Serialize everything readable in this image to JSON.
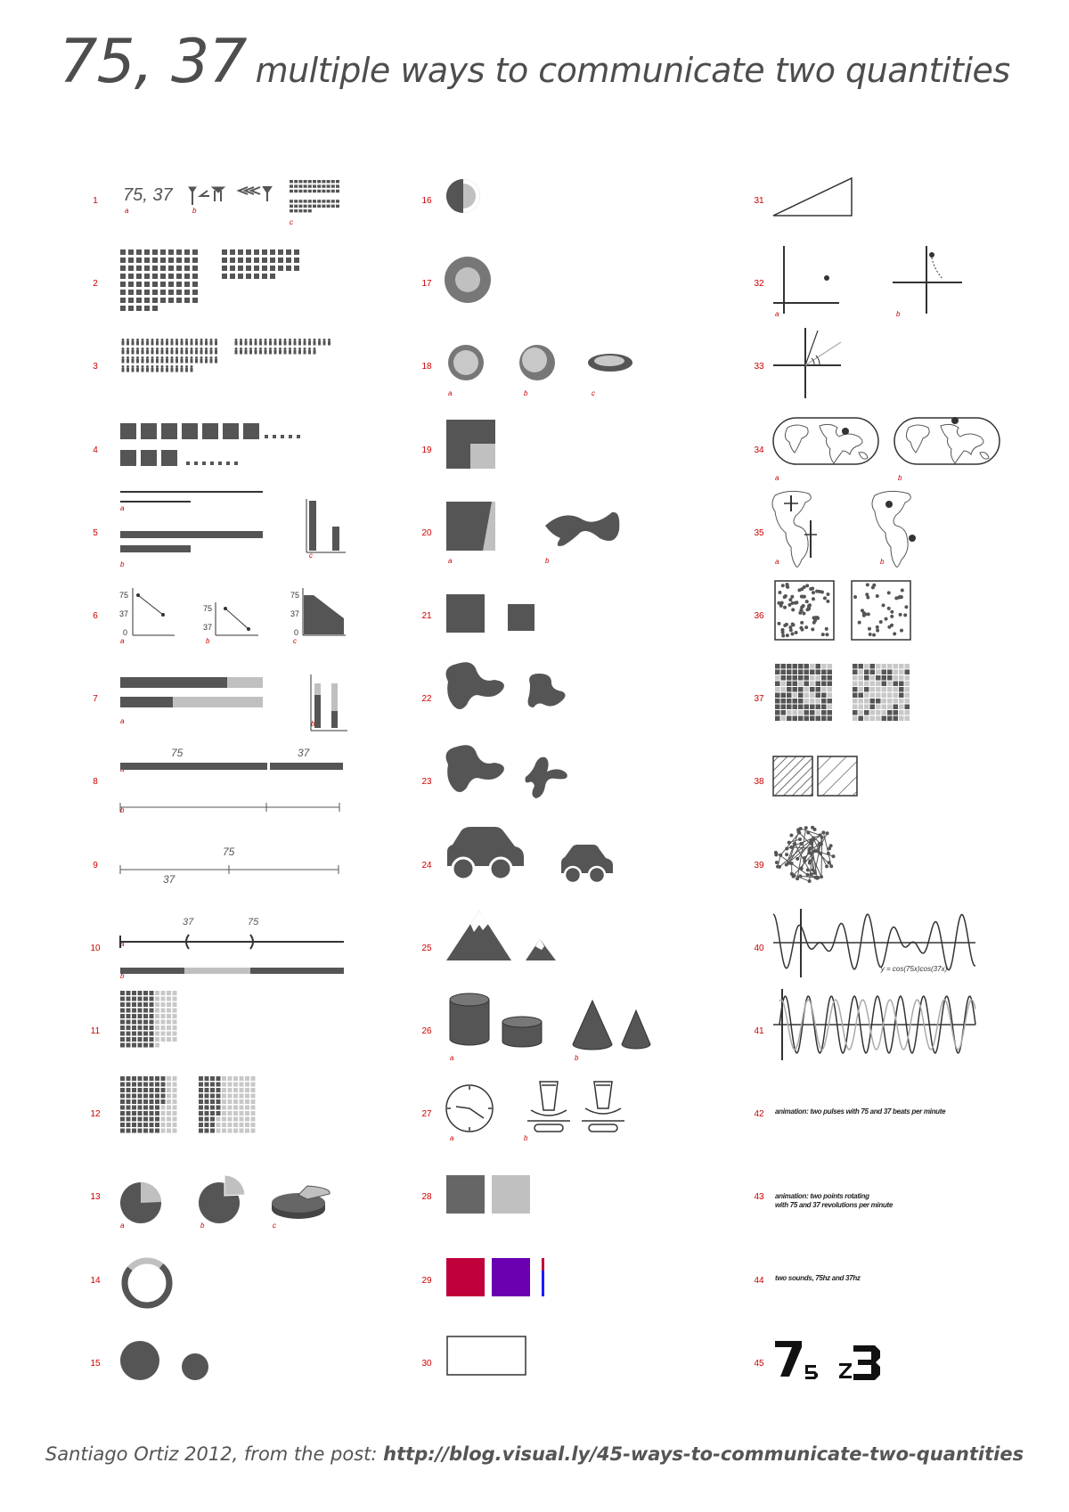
{
  "title": {
    "main": "75, 37",
    "sub": "multiple ways to communicate two quantities"
  },
  "footer": {
    "credit": "Santiago Ortiz 2012, from the post: ",
    "url": "http://blog.visual.ly/45-ways-to-communicate-two-quantities"
  },
  "colors": {
    "accent_red": "#cc0000",
    "dark_gray": "#555555",
    "light_gray": "#c0c0c0",
    "crimson": "#c0003a",
    "violet": "#6a00b0",
    "blue": "#1a1aff"
  },
  "quantities": [
    75,
    37
  ],
  "panels": {
    "p1": {
      "text": "75, 37"
    },
    "p6": {
      "ticks": [
        "75",
        "37",
        "0"
      ]
    },
    "p8": {
      "labels": [
        "75",
        "37"
      ]
    },
    "p9": {
      "labels": [
        "75",
        "37"
      ]
    },
    "p10": {
      "labels": [
        "37",
        "75"
      ]
    },
    "p40": {
      "formula": "y = cos(75x)cos(37x)"
    },
    "p42": {
      "text": "animation: two pulses with 75 and 37 beats per minute"
    },
    "p43": {
      "text_line1": "animation: two points rotating",
      "text_line2": "with 75 and 37 revolutions per minute"
    },
    "p44": {
      "text": "two sounds, 75hz and 37hz"
    }
  }
}
